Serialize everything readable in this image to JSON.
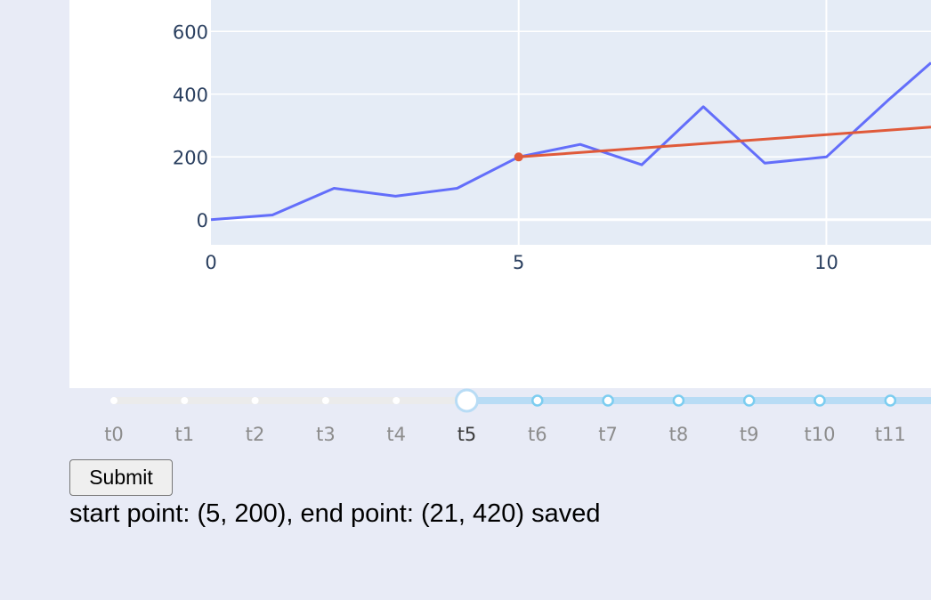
{
  "chart_data": {
    "type": "line",
    "title": "",
    "xlabel": "",
    "ylabel": "",
    "xlim": [
      0,
      11.7
    ],
    "ylim": [
      -80,
      700
    ],
    "x_ticks": [
      0,
      5,
      10
    ],
    "y_ticks": [
      0,
      200,
      400,
      600
    ],
    "x_tick_labels": [
      "0",
      "5",
      "10"
    ],
    "y_tick_labels": [
      "0",
      "200",
      "400",
      "600"
    ],
    "grid": true,
    "plot_background": "#e5ecf6",
    "series": [
      {
        "color": "#636efa",
        "x": [
          0,
          1,
          2,
          3,
          4,
          5,
          6,
          7,
          8,
          9,
          10,
          11,
          11.7
        ],
        "y": [
          0,
          15,
          100,
          75,
          100,
          200,
          240,
          175,
          360,
          180,
          200,
          380,
          500
        ]
      },
      {
        "color": "#e05a3a",
        "x": [
          5,
          11.7
        ],
        "y": [
          200,
          295
        ]
      }
    ],
    "marker": {
      "x": 5,
      "y": 200,
      "color": "#e05a3a"
    }
  },
  "slider": {
    "steps": [
      "t0",
      "t1",
      "t2",
      "t3",
      "t4",
      "t5",
      "t6",
      "t7",
      "t8",
      "t9",
      "t10",
      "t11"
    ],
    "active_index": 5,
    "active_color": "#b8dcf5",
    "inactive_color": "#ebebeb"
  },
  "controls": {
    "submit_label": "Submit"
  },
  "status": {
    "message": "start point: (5, 200), end point: (21, 420) saved"
  }
}
